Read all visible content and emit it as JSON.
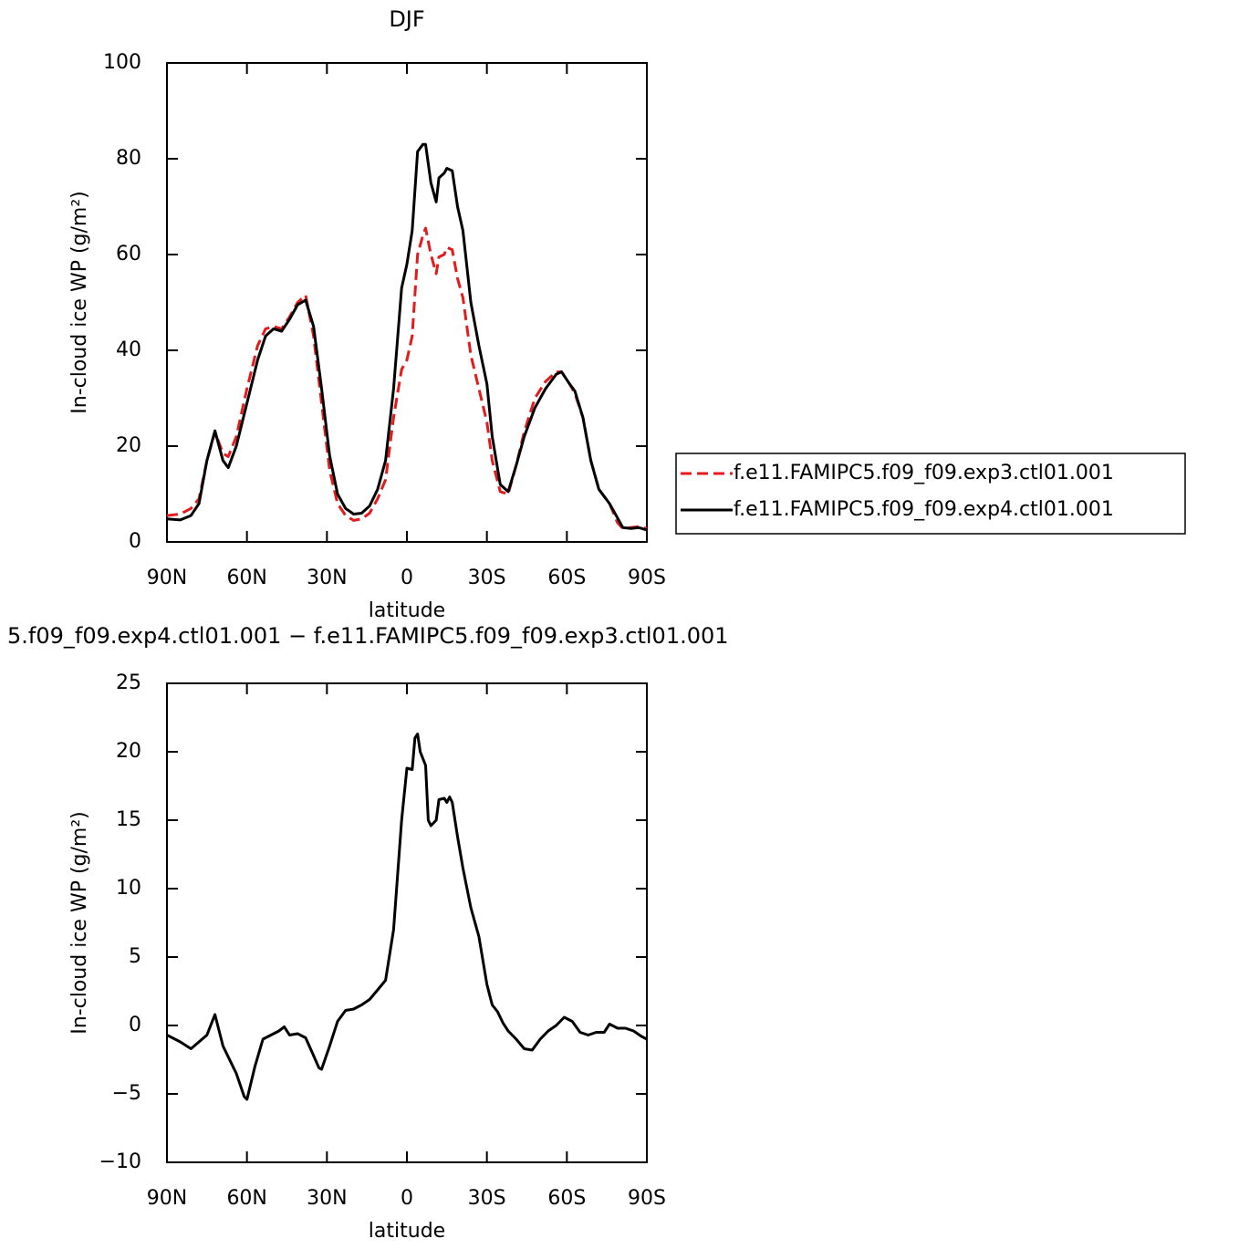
{
  "chart_data": [
    {
      "type": "line",
      "title": "DJF",
      "xlabel": "latitude",
      "ylabel": "In-cloud ice WP (g/m²)",
      "x": [
        90,
        85,
        81,
        78,
        75,
        72,
        69,
        67,
        64,
        60,
        56,
        53,
        50,
        47,
        44,
        41,
        38,
        35,
        32,
        29,
        26,
        23,
        20,
        17,
        14,
        11,
        8,
        5,
        2,
        0,
        -2,
        -4,
        -6,
        -7,
        -9,
        -11,
        -12,
        -14,
        -15,
        -17,
        -19,
        -21,
        -24,
        -27,
        -30,
        -32,
        -35,
        -38,
        -41,
        -44,
        -48,
        -52,
        -56,
        -58,
        -61,
        -63,
        -66,
        -69,
        -72,
        -76,
        -79,
        -81,
        -84,
        -87,
        -90
      ],
      "series": [
        {
          "name": "f.e11.FAMIPC5.f09_f09.exp3.ctl01.001",
          "color": "#e41a1c",
          "dash": true,
          "values": [
            5.5,
            5.8,
            7,
            9,
            17,
            23,
            18.5,
            17.8,
            22,
            32,
            41,
            44.5,
            45,
            44.5,
            47,
            50,
            51.5,
            43,
            29,
            15,
            8,
            5.5,
            4.5,
            4.8,
            6,
            9,
            13,
            26,
            36,
            38,
            43,
            60,
            64,
            65.5,
            60,
            56,
            59.5,
            60,
            61.5,
            61,
            55,
            51,
            39,
            32,
            25,
            17,
            10.5,
            10,
            16,
            23,
            30,
            33.5,
            35.5,
            35.5,
            33,
            31,
            26,
            17,
            11,
            8,
            4,
            2.8,
            3,
            3.2,
            2.8
          ]
        },
        {
          "name": "f.e11.FAMIPC5.f09_f09.exp4.ctl01.001",
          "color": "#000000",
          "dash": false,
          "values": [
            4.8,
            4.6,
            5.5,
            8,
            17,
            23.2,
            17,
            15.5,
            20,
            29,
            38,
            43,
            44.5,
            44,
            46.5,
            49.5,
            50.5,
            45,
            32,
            18,
            10,
            7,
            5.8,
            6,
            7.5,
            11,
            17,
            32,
            53,
            58,
            65,
            81.5,
            83,
            83,
            75,
            71,
            76,
            77,
            78,
            77.5,
            70,
            65,
            50,
            41,
            33,
            22,
            12,
            10.5,
            16,
            22,
            28,
            32,
            35,
            35.5,
            33,
            31.5,
            26,
            17,
            11,
            8,
            5,
            3,
            2.8,
            3,
            2.5
          ]
        }
      ],
      "xlim": [
        90,
        -90
      ],
      "xticks": [
        {
          "value": 90,
          "label": "90N"
        },
        {
          "value": 60,
          "label": "60N"
        },
        {
          "value": 30,
          "label": "30N"
        },
        0,
        {
          "value": -30,
          "label": "30S"
        },
        {
          "value": -60,
          "label": "60S"
        },
        {
          "value": -90,
          "label": "90S"
        }
      ],
      "ylim": [
        0,
        100
      ],
      "yticks": [
        0,
        20,
        40,
        60,
        80,
        100
      ],
      "grid": false,
      "legend": "outside right"
    },
    {
      "type": "line",
      "title": "5.f09_f09.exp4.ctl01.001 − f.e11.FAMIPC5.f09_f09.exp3.ctl01.001",
      "xlabel": "latitude",
      "ylabel": "In-cloud ice WP (g/m²)",
      "x": [
        90,
        85,
        81,
        78,
        75,
        72,
        69,
        67,
        64,
        61,
        60,
        57,
        54,
        51,
        48,
        46,
        44,
        41,
        38,
        35,
        33,
        32,
        29,
        26,
        23,
        20,
        17,
        14,
        11,
        8,
        5,
        2,
        0,
        -2,
        -3,
        -4,
        -5,
        -7,
        -8,
        -9,
        -11,
        -12,
        -14,
        -15,
        -16,
        -17,
        -19,
        -21,
        -24,
        -27,
        -30,
        -32,
        -34,
        -36,
        -38,
        -41,
        -44,
        -47,
        -50,
        -53,
        -56,
        -59,
        -62,
        -65,
        -68,
        -71,
        -74,
        -76,
        -79,
        -82,
        -85,
        -88,
        -90
      ],
      "series": [
        {
          "name": null,
          "color": "#000000",
          "dash": false,
          "values": [
            -0.7,
            -1.2,
            -1.7,
            -1.2,
            -0.7,
            0.8,
            -1.5,
            -2.3,
            -3.5,
            -5.2,
            -5.4,
            -3,
            -1,
            -0.7,
            -0.4,
            -0.1,
            -0.7,
            -0.6,
            -0.9,
            -2.2,
            -3.1,
            -3.2,
            -1.5,
            0.3,
            1.1,
            1.2,
            1.5,
            1.9,
            2.6,
            3.3,
            7,
            15,
            18.8,
            18.7,
            21,
            21.3,
            20,
            19,
            15,
            14.6,
            15,
            16.5,
            16.6,
            16.3,
            16.7,
            16.3,
            13.8,
            11.5,
            8.6,
            6.5,
            3,
            1.5,
            1,
            0.2,
            -0.4,
            -1,
            -1.7,
            -1.8,
            -1,
            -0.4,
            0,
            0.6,
            0.3,
            -0.5,
            -0.7,
            -0.5,
            -0.5,
            0.1,
            -0.2,
            -0.2,
            -0.4,
            -0.8,
            -1
          ]
        }
      ],
      "xlim": [
        90,
        -90
      ],
      "xticks": [
        {
          "value": 90,
          "label": "90N"
        },
        {
          "value": 60,
          "label": "60N"
        },
        {
          "value": 30,
          "label": "30N"
        },
        0,
        {
          "value": -30,
          "label": "30S"
        },
        {
          "value": -60,
          "label": "60S"
        },
        {
          "value": -90,
          "label": "90S"
        }
      ],
      "ylim": [
        -10,
        25
      ],
      "yticks": [
        {
          "value": -10,
          "label": "−10"
        },
        {
          "value": -5,
          "label": "−5"
        },
        0,
        5,
        10,
        15,
        20,
        25
      ],
      "grid": false
    }
  ]
}
